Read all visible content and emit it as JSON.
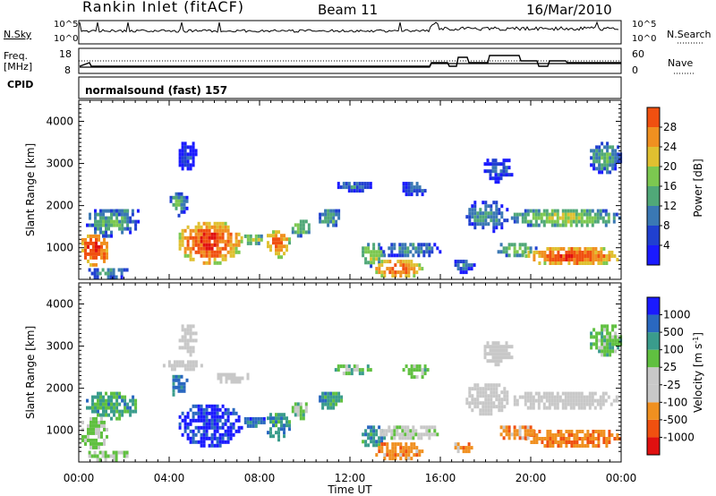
{
  "header": {
    "station": "Rankin Inlet (fitACF)",
    "beam": "Beam 11",
    "date": "16/Mar/2010"
  },
  "panels": {
    "nsky": {
      "left_label": "N.Sky",
      "right_label": "N.Search",
      "ticks_left": [
        "10^5",
        "10^0"
      ],
      "ticks_right": [
        "10^5",
        "10^0"
      ]
    },
    "freq": {
      "label_line1": "Freq.",
      "label_line2": "[MHz]",
      "right_label": "Nave",
      "ticks_left": [
        "18",
        "8"
      ],
      "ticks_right": [
        "60",
        "0"
      ]
    },
    "cpid": {
      "label": "CPID",
      "program": "normalsound (fast) 157"
    }
  },
  "colors": {
    "frame": "#000000",
    "power_scale": [
      "#1a1aff",
      "#2040d0",
      "#3a78b4",
      "#50a878",
      "#7cc850",
      "#e0c030",
      "#f09020",
      "#f05010",
      "#e01010"
    ],
    "velocity_scale": [
      "#e01010",
      "#f05010",
      "#f09020",
      "#c8c8c8",
      "#c8c8c8",
      "#60c040",
      "#3a9c8c",
      "#2a68c0",
      "#1a1aff"
    ]
  },
  "chart_data": [
    {
      "type": "heatmap",
      "name": "power",
      "ylabel": "Slant Range [km]",
      "yticks": [
        1000,
        2000,
        3000,
        4000
      ],
      "ylim": [
        250,
        4500
      ],
      "colorbar_label": "Power [dB]",
      "colorbar_ticks": [
        "4",
        "8",
        "12",
        "16",
        "20",
        "24",
        "28"
      ],
      "colorbar_range": [
        0,
        32
      ],
      "blobs": [
        {
          "t": [
            0.0,
            1.3
          ],
          "r": [
            600,
            1400
          ],
          "v": 29
        },
        {
          "t": [
            0.2,
            2.6
          ],
          "r": [
            1300,
            2000
          ],
          "v": 14
        },
        {
          "t": [
            1.5,
            2.6
          ],
          "r": [
            1750,
            2000
          ],
          "v": 10
        },
        {
          "t": [
            0.3,
            2.2
          ],
          "r": [
            300,
            600
          ],
          "v": 13
        },
        {
          "t": [
            3.9,
            4.8
          ],
          "r": [
            1800,
            2400
          ],
          "v": 13
        },
        {
          "t": [
            4.3,
            7.2
          ],
          "r": [
            650,
            1700
          ],
          "v": 28
        },
        {
          "t": [
            7.2,
            8.2
          ],
          "r": [
            1100,
            1400
          ],
          "v": 18
        },
        {
          "t": [
            8.2,
            9.3
          ],
          "r": [
            800,
            1500
          ],
          "v": 26
        },
        {
          "t": [
            9.3,
            10.2
          ],
          "r": [
            1300,
            1750
          ],
          "v": 16
        },
        {
          "t": [
            10.5,
            11.6
          ],
          "r": [
            1500,
            2000
          ],
          "v": 14
        },
        {
          "t": [
            11.2,
            13.0
          ],
          "r": [
            2350,
            2650
          ],
          "v": 9
        },
        {
          "t": [
            12.4,
            13.5
          ],
          "r": [
            600,
            1200
          ],
          "v": 18
        },
        {
          "t": [
            13.0,
            15.2
          ],
          "r": [
            300,
            800
          ],
          "v": 27
        },
        {
          "t": [
            13.2,
            16.0
          ],
          "r": [
            800,
            1200
          ],
          "v": 12
        },
        {
          "t": [
            14.2,
            15.4
          ],
          "r": [
            2250,
            2650
          ],
          "v": 9
        },
        {
          "t": [
            17.0,
            19.0
          ],
          "r": [
            1400,
            2200
          ],
          "v": 12
        },
        {
          "t": [
            17.8,
            19.2
          ],
          "r": [
            2600,
            3200
          ],
          "v": 8
        },
        {
          "t": [
            19.0,
            24.0
          ],
          "r": [
            1500,
            2000
          ],
          "v": 18
        },
        {
          "t": [
            19.5,
            24.0
          ],
          "r": [
            600,
            1100
          ],
          "v": 27
        },
        {
          "t": [
            18.4,
            20.2
          ],
          "r": [
            800,
            1200
          ],
          "v": 16
        },
        {
          "t": [
            4.3,
            5.2
          ],
          "r": [
            2800,
            3600
          ],
          "v": 6
        },
        {
          "t": [
            16.5,
            17.5
          ],
          "r": [
            450,
            800
          ],
          "v": 10
        },
        {
          "t": [
            22.5,
            24.0
          ],
          "r": [
            2800,
            3600
          ],
          "v": 14
        }
      ]
    },
    {
      "type": "heatmap",
      "name": "velocity",
      "ylabel": "Slant Range [km]",
      "xlabel": "Time UT",
      "xticks": [
        "00:00",
        "04:00",
        "08:00",
        "12:00",
        "16:00",
        "20:00",
        "00:00"
      ],
      "xlim": [
        0,
        24
      ],
      "yticks": [
        1000,
        2000,
        3000,
        4000
      ],
      "ylim": [
        250,
        4500
      ],
      "colorbar_label": "Velocity [m s^-1]",
      "colorbar_ticks": [
        "-1000",
        "-500",
        "-100",
        "-25",
        "25",
        "100",
        "500",
        "1000"
      ],
      "colorbar_range": [
        0,
        9
      ],
      "blobs": [
        {
          "t": [
            0.0,
            1.3
          ],
          "r": [
            600,
            1400
          ],
          "v": 5.2
        },
        {
          "t": [
            0.2,
            2.6
          ],
          "r": [
            1300,
            2000
          ],
          "v": 6.3
        },
        {
          "t": [
            0.3,
            2.2
          ],
          "r": [
            300,
            600
          ],
          "v": 5.0
        },
        {
          "t": [
            3.9,
            4.8
          ],
          "r": [
            1800,
            2400
          ],
          "v": 7.2
        },
        {
          "t": [
            4.3,
            7.2
          ],
          "r": [
            650,
            1700
          ],
          "v": 8.2
        },
        {
          "t": [
            7.2,
            8.2
          ],
          "r": [
            1100,
            1400
          ],
          "v": 7.5
        },
        {
          "t": [
            8.2,
            9.3
          ],
          "r": [
            800,
            1500
          ],
          "v": 6.4
        },
        {
          "t": [
            9.3,
            10.2
          ],
          "r": [
            1300,
            1750
          ],
          "v": 5.6
        },
        {
          "t": [
            10.5,
            11.6
          ],
          "r": [
            1500,
            2000
          ],
          "v": 6.6
        },
        {
          "t": [
            11.2,
            13.0
          ],
          "r": [
            2350,
            2650
          ],
          "v": 5.5
        },
        {
          "t": [
            12.4,
            13.5
          ],
          "r": [
            600,
            1200
          ],
          "v": 6.5
        },
        {
          "t": [
            13.0,
            15.2
          ],
          "r": [
            300,
            800
          ],
          "v": 2.4
        },
        {
          "t": [
            13.2,
            16.0
          ],
          "r": [
            800,
            1200
          ],
          "v": 4.5
        },
        {
          "t": [
            14.2,
            15.4
          ],
          "r": [
            2250,
            2650
          ],
          "v": 5.5
        },
        {
          "t": [
            17.0,
            19.0
          ],
          "r": [
            1400,
            2200
          ],
          "v": 4.0
        },
        {
          "t": [
            17.8,
            19.2
          ],
          "r": [
            2600,
            3200
          ],
          "v": 4.0
        },
        {
          "t": [
            19.0,
            24.0
          ],
          "r": [
            1500,
            2000
          ],
          "v": 4.0
        },
        {
          "t": [
            19.5,
            24.0
          ],
          "r": [
            600,
            1100
          ],
          "v": 2.2
        },
        {
          "t": [
            18.4,
            20.2
          ],
          "r": [
            800,
            1200
          ],
          "v": 2.6
        },
        {
          "t": [
            4.3,
            5.2
          ],
          "r": [
            2800,
            3600
          ],
          "v": 4.0
        },
        {
          "t": [
            16.5,
            17.5
          ],
          "r": [
            450,
            800
          ],
          "v": 2.6
        },
        {
          "t": [
            22.5,
            24.0
          ],
          "r": [
            2800,
            3600
          ],
          "v": 5.5
        },
        {
          "t": [
            3.6,
            5.5
          ],
          "r": [
            2450,
            2750
          ],
          "v": 4.0
        },
        {
          "t": [
            6.0,
            7.5
          ],
          "r": [
            2150,
            2450
          ],
          "v": 4.0
        }
      ]
    }
  ]
}
